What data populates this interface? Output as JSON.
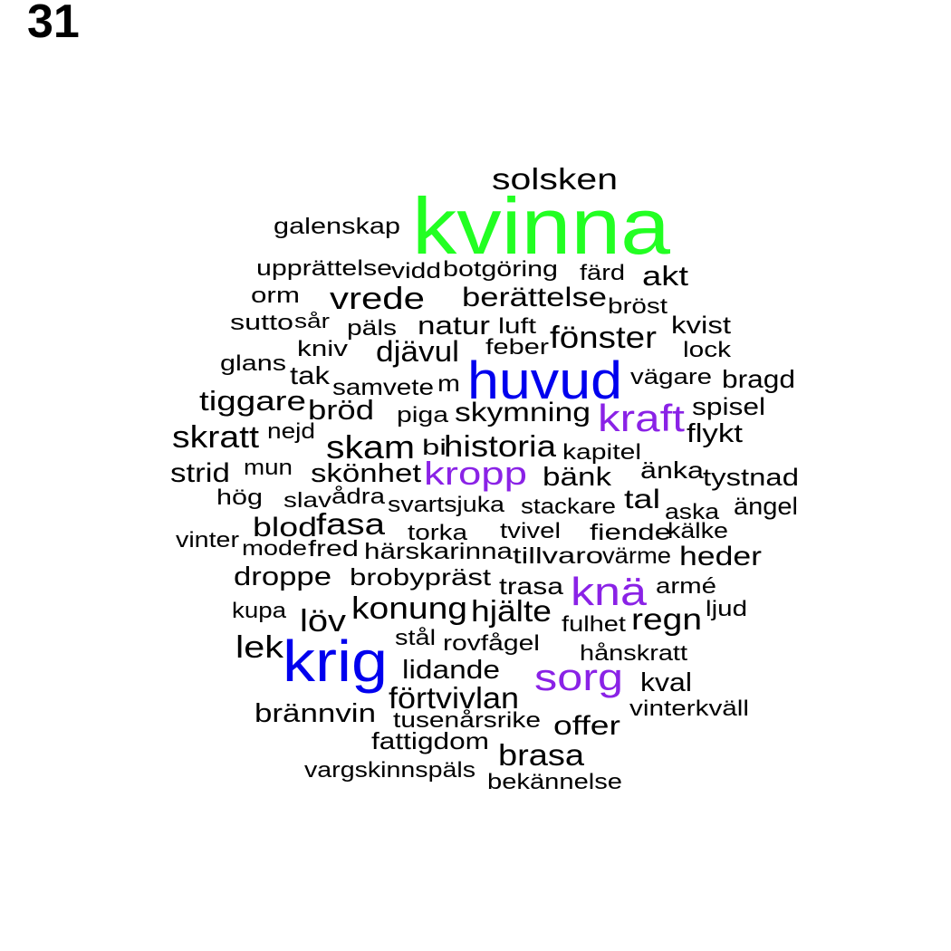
{
  "page_label": "31",
  "colors": {
    "black": "#000000",
    "green": "#22ff22",
    "blue": "#0000ee",
    "purple": "#8a22e6"
  },
  "words": [
    {
      "text": "kvinna",
      "color": "green"
    },
    {
      "text": "krig",
      "color": "blue"
    },
    {
      "text": "huvud",
      "color": "blue"
    },
    {
      "text": "knä",
      "color": "purple"
    },
    {
      "text": "sorg",
      "color": "purple"
    },
    {
      "text": "kraft",
      "color": "purple"
    },
    {
      "text": "kropp",
      "color": "purple"
    },
    {
      "text": "solsken",
      "color": "black"
    },
    {
      "text": "galenskap",
      "color": "black"
    },
    {
      "text": "upprättelse",
      "color": "black"
    },
    {
      "text": "vidd",
      "color": "black"
    },
    {
      "text": "botgöring",
      "color": "black"
    },
    {
      "text": "färd",
      "color": "black"
    },
    {
      "text": "akt",
      "color": "black"
    },
    {
      "text": "orm",
      "color": "black"
    },
    {
      "text": "vrede",
      "color": "black"
    },
    {
      "text": "berättelse",
      "color": "black"
    },
    {
      "text": "bröst",
      "color": "black"
    },
    {
      "text": "sutto",
      "color": "black"
    },
    {
      "text": "sår",
      "color": "black"
    },
    {
      "text": "päls",
      "color": "black"
    },
    {
      "text": "natur",
      "color": "black"
    },
    {
      "text": "luft",
      "color": "black"
    },
    {
      "text": "kvist",
      "color": "black"
    },
    {
      "text": "fönster",
      "color": "black"
    },
    {
      "text": "kniv",
      "color": "black"
    },
    {
      "text": "djävul",
      "color": "black"
    },
    {
      "text": "feber",
      "color": "black"
    },
    {
      "text": "lock",
      "color": "black"
    },
    {
      "text": "glans",
      "color": "black"
    },
    {
      "text": "tak",
      "color": "black"
    },
    {
      "text": "samvete",
      "color": "black"
    },
    {
      "text": "m",
      "color": "black"
    },
    {
      "text": "vägare",
      "color": "black"
    },
    {
      "text": "bragd",
      "color": "black"
    },
    {
      "text": "tiggare",
      "color": "black"
    },
    {
      "text": "bröd",
      "color": "black"
    },
    {
      "text": "piga",
      "color": "black"
    },
    {
      "text": "skymning",
      "color": "black"
    },
    {
      "text": "spisel",
      "color": "black"
    },
    {
      "text": "skratt",
      "color": "black"
    },
    {
      "text": "nejd",
      "color": "black"
    },
    {
      "text": "flykt",
      "color": "black"
    },
    {
      "text": "skam",
      "color": "black"
    },
    {
      "text": "bi",
      "color": "black"
    },
    {
      "text": "historia",
      "color": "black"
    },
    {
      "text": "kapitel",
      "color": "black"
    },
    {
      "text": "strid",
      "color": "black"
    },
    {
      "text": "mun",
      "color": "black"
    },
    {
      "text": "skönhet",
      "color": "black"
    },
    {
      "text": "bänk",
      "color": "black"
    },
    {
      "text": "änka",
      "color": "black"
    },
    {
      "text": "tystnad",
      "color": "black"
    },
    {
      "text": "hög",
      "color": "black"
    },
    {
      "text": "slav",
      "color": "black"
    },
    {
      "text": "ådra",
      "color": "black"
    },
    {
      "text": "svartsjuka",
      "color": "black"
    },
    {
      "text": "stackare",
      "color": "black"
    },
    {
      "text": "tal",
      "color": "black"
    },
    {
      "text": "aska",
      "color": "black"
    },
    {
      "text": "ängel",
      "color": "black"
    },
    {
      "text": "blod",
      "color": "black"
    },
    {
      "text": "fasa",
      "color": "black"
    },
    {
      "text": "torka",
      "color": "black"
    },
    {
      "text": "tvivel",
      "color": "black"
    },
    {
      "text": "fiende",
      "color": "black"
    },
    {
      "text": "kälke",
      "color": "black"
    },
    {
      "text": "vinter",
      "color": "black"
    },
    {
      "text": "mode",
      "color": "black"
    },
    {
      "text": "fred",
      "color": "black"
    },
    {
      "text": "härskarinna",
      "color": "black"
    },
    {
      "text": "tillvaro",
      "color": "black"
    },
    {
      "text": "värme",
      "color": "black"
    },
    {
      "text": "heder",
      "color": "black"
    },
    {
      "text": "droppe",
      "color": "black"
    },
    {
      "text": "brobypräst",
      "color": "black"
    },
    {
      "text": "trasa",
      "color": "black"
    },
    {
      "text": "armé",
      "color": "black"
    },
    {
      "text": "kupa",
      "color": "black"
    },
    {
      "text": "löv",
      "color": "black"
    },
    {
      "text": "konung",
      "color": "black"
    },
    {
      "text": "hjälte",
      "color": "black"
    },
    {
      "text": "fulhet",
      "color": "black"
    },
    {
      "text": "regn",
      "color": "black"
    },
    {
      "text": "ljud",
      "color": "black"
    },
    {
      "text": "lek",
      "color": "black"
    },
    {
      "text": "stål",
      "color": "black"
    },
    {
      "text": "rovfågel",
      "color": "black"
    },
    {
      "text": "hånskratt",
      "color": "black"
    },
    {
      "text": "lidande",
      "color": "black"
    },
    {
      "text": "kval",
      "color": "black"
    },
    {
      "text": "förtvivlan",
      "color": "black"
    },
    {
      "text": "vinterkväll",
      "color": "black"
    },
    {
      "text": "brännvin",
      "color": "black"
    },
    {
      "text": "tusenårsrike",
      "color": "black"
    },
    {
      "text": "offer",
      "color": "black"
    },
    {
      "text": "fattigdom",
      "color": "black"
    },
    {
      "text": "brasa",
      "color": "black"
    },
    {
      "text": "vargskinnspäls",
      "color": "black"
    },
    {
      "text": "bekännelse",
      "color": "black"
    }
  ]
}
